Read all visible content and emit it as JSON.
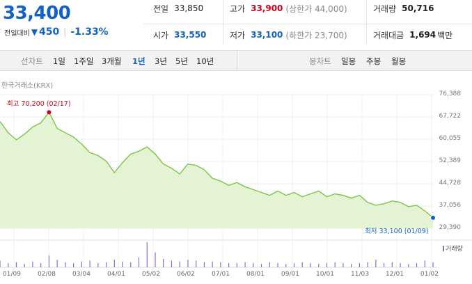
{
  "quote": {
    "price": "33,400",
    "change_label": "전일대비",
    "change_icon": "down-triangle-icon",
    "change_arrow": "▼",
    "change_amount": "450",
    "change_sep": "|",
    "change_percent": "-1.33%"
  },
  "info": {
    "prev_close_label": "전일",
    "prev_close": "33,850",
    "high_label": "고가",
    "high": "33,900",
    "upper_limit": "(상한가 44,000)",
    "volume_label": "거래량",
    "volume": "50,716",
    "open_label": "시가",
    "open": "33,550",
    "low_label": "저가",
    "low": "33,100",
    "lower_limit": "(하한가 23,700)",
    "amount_label": "거래대금",
    "amount": "1,694",
    "amount_unit": "백만"
  },
  "periods": {
    "line_label": "선차트",
    "line_items": [
      "1일",
      "1주일",
      "3개월",
      "1년",
      "3년",
      "5년",
      "10년"
    ],
    "active_index": 3,
    "candle_label": "봉차트",
    "candle_items": [
      "일봉",
      "주봉",
      "월봉"
    ]
  },
  "chart": {
    "exchange_label": "한국거래소(KRX)",
    "y_ticks": [
      "76,388",
      "67,722",
      "60,055",
      "52,389",
      "44,728",
      "37,056",
      "29,390"
    ],
    "x_ticks": [
      "01/09",
      "02/08",
      "03/04",
      "04/01",
      "05/02",
      "06/02",
      "07/01",
      "08/01",
      "09/01",
      "10/01",
      "11/03",
      "12/01",
      "01/02"
    ],
    "high_annotation": "최고 70,200 (02/17)",
    "low_annotation": "최저 33,100 (01/09)",
    "volume_legend": "거래량",
    "colors": {
      "line": "#7cc447",
      "fill": "#e3f3d3",
      "high": "#d0021b",
      "low": "#1261c4",
      "volume": "#8a6cc8"
    }
  },
  "chart_data": {
    "type": "area",
    "title": "",
    "ylim": [
      29390,
      76388
    ],
    "x": [
      "01/09",
      "01/16",
      "01/23",
      "01/30",
      "02/06",
      "02/13",
      "02/17",
      "02/24",
      "03/03",
      "03/10",
      "03/17",
      "03/24",
      "03/31",
      "04/07",
      "04/14",
      "04/21",
      "04/28",
      "05/05",
      "05/12",
      "05/19",
      "05/26",
      "06/02",
      "06/09",
      "06/16",
      "06/23",
      "06/30",
      "07/07",
      "07/14",
      "07/21",
      "07/28",
      "08/04",
      "08/11",
      "08/18",
      "08/25",
      "09/01",
      "09/08",
      "09/15",
      "09/22",
      "09/29",
      "10/06",
      "10/13",
      "10/20",
      "10/27",
      "11/03",
      "11/10",
      "11/17",
      "11/24",
      "12/01",
      "12/08",
      "12/15",
      "12/22",
      "12/29",
      "01/02",
      "01/09"
    ],
    "series": [
      {
        "values": [
          67000,
          63000,
          60500,
          62500,
          65000,
          66500,
          70200,
          64500,
          63000,
          61500,
          59000,
          56000,
          55000,
          53000,
          49000,
          52500,
          55500,
          56500,
          58000,
          55500,
          52000,
          50500,
          48500,
          52000,
          51500,
          50000,
          47000,
          46000,
          44500,
          45500,
          44000,
          43000,
          42000,
          41000,
          42500,
          41000,
          42000,
          40500,
          41500,
          42500,
          40500,
          41500,
          41000,
          40000,
          41000,
          38500,
          37500,
          38000,
          39000,
          38500,
          37000,
          37500,
          35500,
          33100
        ]
      }
    ],
    "volume": [
      8,
      5,
      6,
      4,
      7,
      5,
      14,
      9,
      6,
      5,
      7,
      8,
      5,
      6,
      9,
      7,
      6,
      12,
      30,
      18,
      10,
      8,
      7,
      9,
      8,
      6,
      7,
      6,
      5,
      5,
      6,
      5,
      4,
      6,
      5,
      4,
      5,
      6,
      5,
      4,
      5,
      6,
      5,
      4,
      5,
      6,
      9,
      5,
      6,
      5,
      4,
      5,
      8,
      6
    ]
  }
}
